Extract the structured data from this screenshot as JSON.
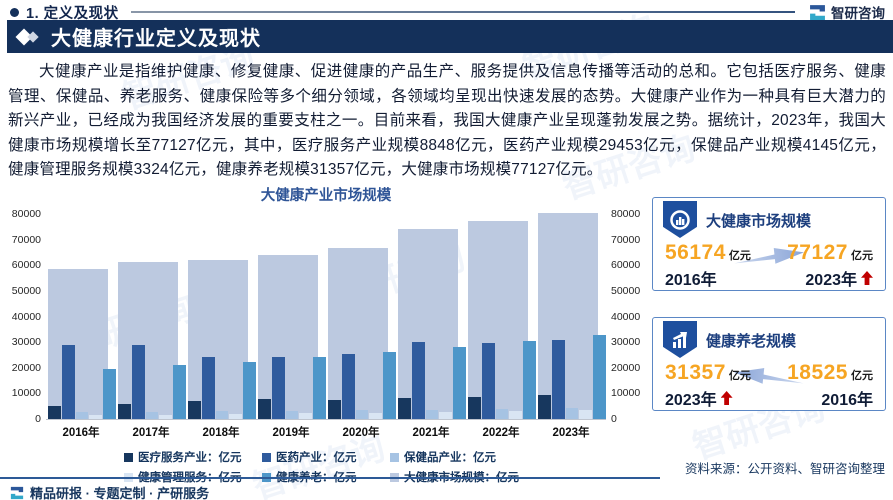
{
  "page": {
    "section_label": "1. 定义及现状",
    "banner_title": "大健康行业定义及现状",
    "brand_name": "智研咨询",
    "paragraph": "大健康产业是指维护健康、修复健康、促进健康的产品生产、服务提供及信息传播等活动的总和。它包括医疗服务、健康管理、保健品、养老服务、健康保险等多个细分领域，各领域均呈现出快速发展的态势。大健康产业作为一种具有巨大潜力的新兴产业，已经成为我国经济发展的重要支柱之一。目前来看，我国大健康产业呈现蓬勃发展之势。据统计，2023年，我国大健康市场规模增长至77127亿元，其中，医疗服务产业规模8848亿元，医药产业规模29453亿元，保健品产业规模4145亿元，健康管理服务规模3324亿元，健康养老规模31357亿元，大健康市场规模77127亿元。",
    "source_note": "资料来源：公开资料、智研咨询整理",
    "footer_tagline": "精品研报 · 专题定制 · 产研服务"
  },
  "chart_data": {
    "type": "bar",
    "title": "大健康产业市场规模",
    "unit": "亿元",
    "categories": [
      "2016年",
      "2017年",
      "2018年",
      "2019年",
      "2020年",
      "2021年",
      "2022年",
      "2023年"
    ],
    "ylim": [
      0,
      80000
    ],
    "yticks": [
      0,
      10000,
      20000,
      30000,
      40000,
      50000,
      60000,
      70000,
      80000
    ],
    "grid": false,
    "legend_position": "bottom",
    "series": [
      {
        "name": "医疗服务产业",
        "legend_label": "医疗服务产业：亿元",
        "slug": "medical-services",
        "color": "#17375E",
        "values": [
          4900,
          5600,
          6600,
          7300,
          7000,
          7700,
          8300,
          8848
        ]
      },
      {
        "name": "医药产业",
        "legend_label": "医药产业：亿元",
        "slug": "pharmaceutical",
        "color": "#2F5B9D",
        "values": [
          27500,
          27800,
          23200,
          23000,
          24200,
          28900,
          28500,
          29453
        ]
      },
      {
        "name": "保健品产业",
        "legend_label": "保健品产业：亿元",
        "slug": "health-products",
        "color": "#A6C3E3",
        "values": [
          2600,
          2700,
          2900,
          3100,
          3200,
          3400,
          3800,
          4145
        ]
      },
      {
        "name": "健康管理服务",
        "legend_label": "健康管理服务：亿元",
        "slug": "health-management",
        "color": "#D9E5F3",
        "values": [
          1400,
          1600,
          1800,
          2100,
          2300,
          2700,
          3000,
          3324
        ]
      },
      {
        "name": "健康养老",
        "legend_label": "健康养老：亿元",
        "slug": "elderly-care",
        "color": "#4D96C9",
        "values": [
          18525,
          20300,
          21500,
          23000,
          25100,
          27000,
          29300,
          31357
        ]
      },
      {
        "name": "大健康市场规模",
        "legend_label": "大健康市场规模：亿元",
        "slug": "total-market",
        "color": "#BCC9E0",
        "background": true,
        "values": [
          56174,
          58800,
          59600,
          61200,
          64000,
          71200,
          74000,
          77127
        ]
      }
    ]
  },
  "panels": [
    {
      "title": "大健康市场规模",
      "icon": "donut-chart-icon",
      "arrow_direction": "right",
      "left": {
        "value": "56174",
        "unit": "亿元",
        "year": "2016年",
        "trend_up": false
      },
      "right": {
        "value": "77127",
        "unit": "亿元",
        "year": "2023年",
        "trend_up": true
      }
    },
    {
      "title": "健康养老规模",
      "icon": "trend-chart-icon",
      "arrow_direction": "left",
      "left": {
        "value": "31357",
        "unit": "亿元",
        "year": "2023年",
        "trend_up": true
      },
      "right": {
        "value": "18525",
        "unit": "亿元",
        "year": "2016年",
        "trend_up": false
      }
    }
  ],
  "colors": {
    "banner_bg": "#14305A",
    "accent_blue": "#2F5597",
    "value_orange": "#F6A523",
    "trend_red": "#C00000",
    "panel_border": "#5B87C5",
    "brand_teal": "#31A8C9"
  }
}
